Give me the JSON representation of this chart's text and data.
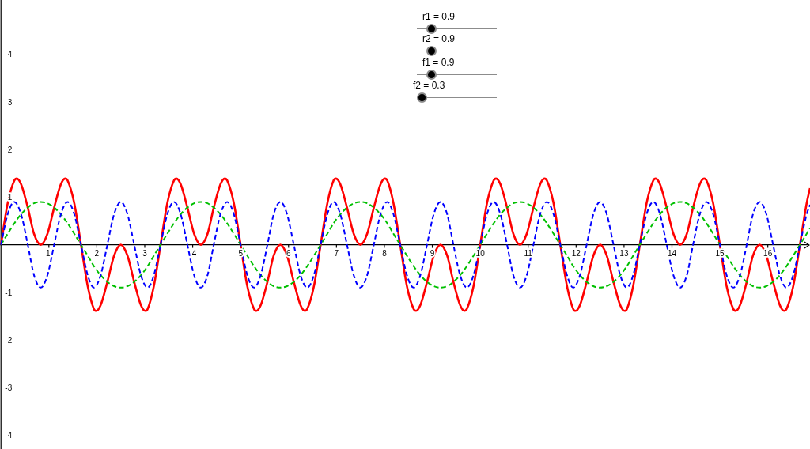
{
  "chart_data": {
    "type": "line",
    "marker": "none",
    "x": [
      0,
      0.14,
      0.28,
      0.42,
      0.56,
      0.69,
      0.83,
      0.97,
      1.11,
      1.25,
      1.39,
      1.53,
      1.67,
      1.81,
      1.94,
      2.08,
      2.22,
      2.36,
      2.5,
      2.64,
      2.78,
      2.92,
      3.06,
      3.19,
      3.33,
      3.47,
      3.61,
      3.75,
      3.89,
      4.03,
      4.17,
      4.31,
      4.44,
      4.58,
      4.72,
      4.86,
      5,
      5.14,
      5.28,
      5.42,
      5.56,
      5.69,
      5.83,
      5.97,
      6.11,
      6.25,
      6.39,
      6.53,
      6.67,
      6.81,
      6.94,
      7.08,
      7.22,
      7.36,
      7.5,
      7.64,
      7.78,
      7.92,
      8.06,
      8.19,
      8.33,
      8.47,
      8.61,
      8.75,
      8.89,
      9.03,
      9.17,
      9.31,
      9.44,
      9.58,
      9.72,
      9.86,
      10,
      10.14,
      10.28,
      10.42,
      10.56,
      10.69,
      10.83,
      10.97,
      11.11,
      11.25,
      11.39,
      11.53,
      11.67,
      11.81,
      11.94,
      12.08,
      12.22,
      12.36,
      12.5,
      12.64,
      12.78,
      12.92,
      13.06,
      13.19,
      13.33,
      13.47,
      13.61,
      13.75,
      13.89,
      14.03,
      14.17,
      14.31,
      14.44,
      14.58,
      14.72,
      14.86,
      15,
      15.14,
      15.28,
      15.42,
      15.56,
      15.69,
      15.83,
      15.97,
      16.11,
      16.25,
      16.39,
      16.53,
      16.67,
      16.81,
      16.88
    ],
    "series": [
      {
        "color": "#0000ff",
        "line_style": "dashed",
        "values": [
          0,
          0.64,
          0.9,
          0.64,
          0,
          -0.64,
          -0.9,
          -0.64,
          0,
          0.64,
          0.9,
          0.64,
          0,
          -0.64,
          -0.9,
          -0.64,
          0,
          0.64,
          0.9,
          0.64,
          0,
          -0.64,
          -0.9,
          -0.64,
          0,
          0.64,
          0.9,
          0.64,
          0,
          -0.64,
          -0.9,
          -0.64,
          0,
          0.64,
          0.9,
          0.64,
          0,
          -0.64,
          -0.9,
          -0.64,
          0,
          0.64,
          0.9,
          0.64,
          0,
          -0.64,
          -0.9,
          -0.64,
          0,
          0.64,
          0.9,
          0.64,
          0,
          -0.64,
          -0.9,
          -0.64,
          0,
          0.64,
          0.9,
          0.64,
          0,
          -0.64,
          -0.9,
          -0.64,
          0,
          0.64,
          0.9,
          0.64,
          0,
          -0.64,
          -0.9,
          -0.64,
          0,
          0.64,
          0.9,
          0.64,
          0,
          -0.64,
          -0.9,
          -0.64,
          0,
          0.64,
          0.9,
          0.64,
          0,
          -0.64,
          -0.9,
          -0.64,
          0,
          0.64,
          0.9,
          0.64,
          0,
          -0.64,
          -0.9,
          -0.64,
          0,
          0.64,
          0.9,
          0.64,
          0,
          -0.64,
          -0.9,
          -0.64,
          0,
          0.64,
          0.9,
          0.64,
          0,
          -0.64,
          -0.9,
          -0.64,
          0,
          0.64,
          0.9,
          0.64,
          0,
          -0.64,
          -0.9,
          -0.64,
          0,
          0.64,
          0.84
        ]
      },
      {
        "color": "#00c000",
        "line_style": "dashed",
        "values": [
          0,
          0.23,
          0.45,
          0.64,
          0.78,
          0.87,
          0.9,
          0.87,
          0.78,
          0.64,
          0.45,
          0.23,
          0,
          -0.23,
          -0.45,
          -0.64,
          -0.78,
          -0.87,
          -0.9,
          -0.87,
          -0.78,
          -0.64,
          -0.45,
          -0.23,
          0,
          0.23,
          0.45,
          0.64,
          0.78,
          0.87,
          0.9,
          0.87,
          0.78,
          0.64,
          0.45,
          0.23,
          0,
          -0.23,
          -0.45,
          -0.64,
          -0.78,
          -0.87,
          -0.9,
          -0.87,
          -0.78,
          -0.64,
          -0.45,
          -0.23,
          0,
          0.23,
          0.45,
          0.64,
          0.78,
          0.87,
          0.9,
          0.87,
          0.78,
          0.64,
          0.45,
          0.23,
          0,
          -0.23,
          -0.45,
          -0.64,
          -0.78,
          -0.87,
          -0.9,
          -0.87,
          -0.78,
          -0.64,
          -0.45,
          -0.23,
          0,
          0.23,
          0.45,
          0.64,
          0.78,
          0.87,
          0.9,
          0.87,
          0.78,
          0.64,
          0.45,
          0.23,
          0,
          -0.23,
          -0.45,
          -0.64,
          -0.78,
          -0.87,
          -0.9,
          -0.87,
          -0.78,
          -0.64,
          -0.45,
          -0.23,
          0,
          0.23,
          0.45,
          0.64,
          0.78,
          0.87,
          0.9,
          0.87,
          0.78,
          0.64,
          0.45,
          0.23,
          0,
          -0.23,
          -0.45,
          -0.64,
          -0.78,
          -0.87,
          -0.9,
          -0.87,
          -0.78,
          -0.64,
          -0.45,
          -0.23,
          0,
          0.23,
          0.35
        ]
      },
      {
        "color": "#ff0000",
        "line_style": "solid",
        "x": [
          0,
          0.14,
          0.28,
          0.33,
          0.42,
          0.56,
          0.69,
          0.83,
          0.97,
          1.11,
          1.25,
          1.34,
          1.39,
          1.53,
          1.67,
          1.81,
          1.94,
          1.99,
          2.08,
          2.22,
          2.36,
          2.5,
          2.64,
          2.78,
          2.92,
          3.01,
          3.06,
          3.19,
          3.33,
          3.47,
          3.61,
          3.66,
          3.75,
          3.89,
          4.03,
          4.17,
          4.31,
          4.44,
          4.58,
          4.67,
          4.72,
          4.86,
          5,
          5.14,
          5.28,
          5.33,
          5.42,
          5.56,
          5.69,
          5.83,
          5.97,
          6.11,
          6.25,
          6.34,
          6.39,
          6.53,
          6.67,
          6.81,
          6.94,
          6.99,
          7.08,
          7.22,
          7.36,
          7.5,
          7.64,
          7.78,
          7.92,
          8.01,
          8.06,
          8.19,
          8.33,
          8.47,
          8.61,
          8.66,
          8.75,
          8.89,
          9.03,
          9.17,
          9.31,
          9.44,
          9.58,
          9.67,
          9.72,
          9.86,
          10,
          10.14,
          10.28,
          10.33,
          10.42,
          10.56,
          10.69,
          10.83,
          10.97,
          11.11,
          11.25,
          11.34,
          11.39,
          11.53,
          11.67,
          11.81,
          11.94,
          11.99,
          12.08,
          12.22,
          12.36,
          12.5,
          12.64,
          12.78,
          12.92,
          13.01,
          13.06,
          13.19,
          13.33,
          13.47,
          13.61,
          13.66,
          13.75,
          13.89,
          14.03,
          14.17,
          14.31,
          14.44,
          14.58,
          14.67,
          14.72,
          14.86,
          15,
          15.14,
          15.28,
          15.33,
          15.42,
          15.56,
          15.69,
          15.83,
          15.97,
          16.11,
          16.25,
          16.34,
          16.39,
          16.53,
          16.67,
          16.81,
          16.88
        ],
        "values": [
          0,
          0.87,
          1.35,
          1.39,
          1.27,
          0.78,
          0.23,
          0,
          0.23,
          0.78,
          1.27,
          1.39,
          1.35,
          0.87,
          0,
          -0.87,
          -1.35,
          -1.39,
          -1.27,
          -0.78,
          -0.23,
          0,
          -0.23,
          -0.78,
          -1.27,
          -1.39,
          -1.35,
          -0.87,
          0,
          0.87,
          1.35,
          1.39,
          1.27,
          0.78,
          0.23,
          0,
          0.23,
          0.78,
          1.27,
          1.39,
          1.35,
          0.87,
          0,
          -0.87,
          -1.35,
          -1.39,
          -1.27,
          -0.78,
          -0.23,
          0,
          -0.23,
          -0.78,
          -1.27,
          -1.39,
          -1.35,
          -0.87,
          0,
          0.87,
          1.35,
          1.39,
          1.27,
          0.78,
          0.23,
          0,
          0.23,
          0.78,
          1.27,
          1.39,
          1.35,
          0.87,
          0,
          -0.87,
          -1.35,
          -1.39,
          -1.27,
          -0.78,
          -0.23,
          0,
          -0.23,
          -0.78,
          -1.27,
          -1.39,
          -1.35,
          -0.87,
          0,
          0.87,
          1.35,
          1.39,
          1.27,
          0.78,
          0.23,
          0,
          0.23,
          0.78,
          1.27,
          1.39,
          1.35,
          0.87,
          0,
          -0.87,
          -1.35,
          -1.39,
          -1.27,
          -0.78,
          -0.23,
          0,
          -0.23,
          -0.78,
          -1.27,
          -1.39,
          -1.35,
          -0.87,
          0,
          0.87,
          1.35,
          1.39,
          1.27,
          0.78,
          0.23,
          0,
          0.23,
          0.78,
          1.27,
          1.39,
          1.35,
          0.87,
          0,
          -0.87,
          -1.35,
          -1.39,
          -1.27,
          -0.78,
          -0.23,
          0,
          -0.23,
          -0.78,
          -1.27,
          -1.39,
          -1.35,
          -0.87,
          0,
          0.87,
          1.19
        ]
      }
    ],
    "xlim": [
      -0.02,
      16.88
    ],
    "ylim": [
      -4.29,
      5.14
    ],
    "xticks": [
      1,
      2,
      3,
      4,
      5,
      6,
      7,
      8,
      9,
      10,
      11,
      12,
      13,
      14,
      15,
      16
    ],
    "yticks": [
      -4,
      -3,
      -2,
      -1,
      1,
      2,
      3,
      4
    ],
    "annotations": [
      "r1 = 0.9",
      "r2 = 0.9",
      "f1 = 0.9",
      "f2 = 0.3"
    ]
  }
}
